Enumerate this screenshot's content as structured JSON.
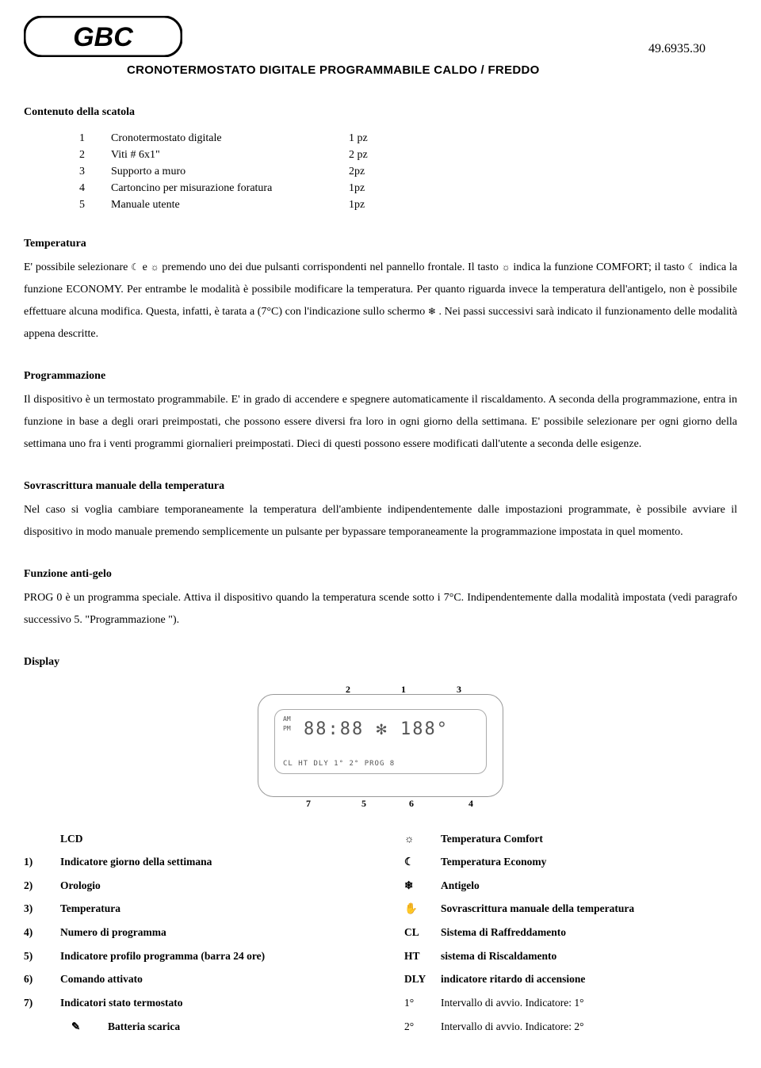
{
  "header": {
    "code": "49.6935.30",
    "title": "CRONOTERMOSTATO DIGITALE PROGRAMMABILE CALDO / FREDDO"
  },
  "sections": {
    "contenuto": {
      "heading": "Contenuto della scatola",
      "rows": [
        {
          "n": "1",
          "desc": "Cronotermostato digitale",
          "qty": "1 pz"
        },
        {
          "n": "2",
          "desc": "Viti # 6x1\"",
          "qty": "2 pz"
        },
        {
          "n": "3",
          "desc": "Supporto a muro",
          "qty": "2pz"
        },
        {
          "n": "4",
          "desc": "Cartoncino per misurazione foratura",
          "qty": "1pz"
        },
        {
          "n": "5",
          "desc": "Manuale utente",
          "qty": "1pz"
        }
      ]
    },
    "temperatura": {
      "heading": "Temperatura",
      "body_pre": "E' possibile selezionare ",
      "body_mid1": " e ",
      "body_mid2": " premendo uno dei due pulsanti corrispondenti nel pannello frontale. Il tasto ",
      "body_mid3": " indica la funzione COMFORT; il tasto ",
      "body_mid4": " indica la funzione ECONOMY. Per entrambe le modalità è possibile modificare la temperatura. Per quanto riguarda invece la temperatura dell'antigelo, non è possibile effettuare alcuna modifica. Questa, infatti, è tarata a (7°C) con l'indicazione sullo schermo ",
      "body_end": ". Nei passi successivi sarà indicato il funzionamento delle modalità appena descritte."
    },
    "prog": {
      "heading": "Programmazione",
      "body": "Il dispositivo è un termostato programmabile. E' in grado di accendere e spegnere automaticamente il riscaldamento. A seconda della programmazione, entra in funzione in base a degli orari preimpostati, che possono essere diversi fra loro in ogni giorno della settimana. E' possibile selezionare per ogni giorno della settimana uno fra i venti programmi giornalieri preimpostati. Dieci di questi possono essere modificati dall'utente a seconda delle esigenze."
    },
    "sovra": {
      "heading": "Sovrascrittura manuale della temperatura",
      "body": "Nel caso si voglia cambiare temporaneamente la temperatura dell'ambiente indipendentemente dalle impostazioni programmate, è possibile avviare il dispositivo in modo manuale premendo semplicemente un pulsante per bypassare temporaneamente la programmazione impostata in quel momento."
    },
    "antigelo": {
      "heading": "Funzione anti-gelo",
      "body": "PROG 0 è un programma speciale. Attiva il dispositivo quando la temperatura scende sotto i 7°C. Indipendentemente dalla modalità impostata (vedi paragrafo successivo 5. \"Programmazione \")."
    },
    "display": {
      "heading": "Display"
    }
  },
  "lcd_mock": {
    "line1": "88:88 ✻ 188°",
    "line2": "CL HT DLY 1° 2°          PROG 8"
  },
  "legend": {
    "left_header": "LCD",
    "left": [
      {
        "k": "1)",
        "v": "Indicatore giorno della settimana"
      },
      {
        "k": "2)",
        "v": "Orologio"
      },
      {
        "k": "3)",
        "v": "Temperatura"
      },
      {
        "k": "4)",
        "v": "Numero di programma"
      },
      {
        "k": "5)",
        "v": "Indicatore profilo programma (barra 24 ore)"
      },
      {
        "k": "6)",
        "v": "Comando attivato"
      },
      {
        "k": "7)",
        "v": "Indicatori stato termostato"
      }
    ],
    "left_indent": {
      "icon": "✎",
      "v": "Batteria scarica"
    },
    "right": [
      {
        "k": "☼",
        "v": "Temperatura Comfort",
        "bold": true
      },
      {
        "k": "☾",
        "v": "Temperatura Economy",
        "bold": true
      },
      {
        "k": "❄",
        "v": "Antigelo",
        "bold": true
      },
      {
        "k": "✋",
        "v": "Sovrascrittura manuale della temperatura",
        "bold": true
      },
      {
        "k": "CL",
        "v": "Sistema di Raffreddamento",
        "bold": true
      },
      {
        "k": "HT",
        "v": "sistema di Riscaldamento",
        "bold": true
      },
      {
        "k": "DLY",
        "v": "indicatore ritardo di accensione",
        "bold": true
      },
      {
        "k": "1°",
        "v": "Intervallo di avvio. Indicatore: 1°",
        "bold": false
      },
      {
        "k": "2°",
        "v": "Intervallo di avvio. Indicatore: 2°",
        "bold": false
      }
    ]
  },
  "icons": {
    "moon": "☾",
    "sun": "☼",
    "snow": "❄"
  }
}
